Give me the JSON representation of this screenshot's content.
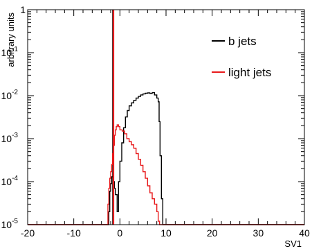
{
  "chart_data": {
    "type": "line",
    "title": "",
    "xlabel": "SV1",
    "ylabel": "arbitrary units",
    "xlim": [
      -20,
      40
    ],
    "ylim": [
      1e-05,
      1
    ],
    "yscale": "log",
    "grid": false,
    "legend_position": "top-right",
    "x_ticks": [
      -20,
      -10,
      0,
      10,
      20,
      30,
      40
    ],
    "y_ticks": [
      {
        "value": 1,
        "base": "1",
        "exp": ""
      },
      {
        "value": 0.1,
        "base": "10",
        "exp": "-1"
      },
      {
        "value": 0.01,
        "base": "10",
        "exp": "-2"
      },
      {
        "value": 0.001,
        "base": "10",
        "exp": "-3"
      },
      {
        "value": 0.0001,
        "base": "10",
        "exp": "-4"
      },
      {
        "value": 1e-05,
        "base": "10",
        "exp": "-5"
      }
    ],
    "series": [
      {
        "name": "b jets",
        "color": "#000000",
        "spike": {
          "x": -1.5,
          "y": 1
        },
        "points": [
          [
            -20,
            1e-05
          ],
          [
            -2.5,
            1e-05
          ],
          [
            -2.4,
            2e-05
          ],
          [
            -2.2,
            6e-05
          ],
          [
            -2,
            9e-05
          ],
          [
            -1.8,
            0.00013
          ],
          [
            -1.5,
            0.0001
          ],
          [
            -1.2,
            7e-05
          ],
          [
            -1,
            5e-05
          ],
          [
            -0.6,
            2e-05
          ],
          [
            -0.3,
            0.0001
          ],
          [
            0,
            0.0003
          ],
          [
            0.4,
            0.0008
          ],
          [
            0.8,
            0.0018
          ],
          [
            1.2,
            0.0032
          ],
          [
            1.6,
            0.0045
          ],
          [
            2,
            0.0058
          ],
          [
            2.5,
            0.0068
          ],
          [
            3,
            0.0078
          ],
          [
            3.5,
            0.0088
          ],
          [
            4,
            0.0096
          ],
          [
            4.5,
            0.0104
          ],
          [
            5,
            0.011
          ],
          [
            5.5,
            0.0114
          ],
          [
            6,
            0.0116
          ],
          [
            6.5,
            0.0113
          ],
          [
            7,
            0.0118
          ],
          [
            7.5,
            0.0104
          ],
          [
            8,
            0.0088
          ],
          [
            8.3,
            0.0072
          ],
          [
            8.5,
            0.0025
          ],
          [
            8.7,
            0.0004
          ],
          [
            9,
            4e-05
          ],
          [
            9.3,
            1e-05
          ],
          [
            40,
            1e-05
          ]
        ]
      },
      {
        "name": "light jets",
        "color": "#e8191b",
        "spike": {
          "x": -1.4,
          "y": 1
        },
        "points": [
          [
            -20,
            1e-05
          ],
          [
            -2.8,
            1e-05
          ],
          [
            -2.6,
            3e-05
          ],
          [
            -2.4,
            7e-05
          ],
          [
            -2.2,
            0.00012
          ],
          [
            -2,
            0.00017
          ],
          [
            -1.8,
            0.00025
          ],
          [
            -1.6,
            0.00045
          ],
          [
            -1.4,
            0.0007
          ],
          [
            -1.2,
            0.0012
          ],
          [
            -1,
            0.0016
          ],
          [
            -0.8,
            0.0019
          ],
          [
            -0.6,
            0.0021
          ],
          [
            -0.3,
            0.0019
          ],
          [
            0,
            0.0016
          ],
          [
            0.5,
            0.0015
          ],
          [
            1,
            0.0013
          ],
          [
            1.5,
            0.001
          ],
          [
            2,
            0.00085
          ],
          [
            2.5,
            0.00072
          ],
          [
            3,
            0.0006
          ],
          [
            3.5,
            0.00045
          ],
          [
            4,
            0.00033
          ],
          [
            4.5,
            0.00024
          ],
          [
            5,
            0.00017
          ],
          [
            5.5,
            0.00012
          ],
          [
            6,
            8e-05
          ],
          [
            6.5,
            5.5e-05
          ],
          [
            7,
            4e-05
          ],
          [
            7.5,
            3e-05
          ],
          [
            8,
            2e-05
          ],
          [
            8.3,
            1.2e-05
          ],
          [
            8.6,
            1e-05
          ],
          [
            40,
            1e-05
          ]
        ]
      }
    ]
  }
}
